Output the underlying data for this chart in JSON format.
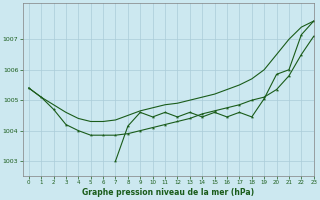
{
  "title": "Graphe pression niveau de la mer (hPa)",
  "background_color": "#cce8f0",
  "grid_color": "#aaccd8",
  "line_color": "#1a5c1a",
  "xlim": [
    -0.5,
    23
  ],
  "ylim": [
    1002.5,
    1008.2
  ],
  "yticks": [
    1003,
    1004,
    1005,
    1006,
    1007
  ],
  "xticks": [
    0,
    1,
    2,
    3,
    4,
    5,
    6,
    7,
    8,
    9,
    10,
    11,
    12,
    13,
    14,
    15,
    16,
    17,
    18,
    19,
    20,
    21,
    22,
    23
  ],
  "smooth_upper_x": [
    0,
    1,
    2,
    3,
    4,
    5,
    6,
    7,
    8,
    9,
    10,
    11,
    12,
    13,
    14,
    15,
    16,
    17,
    18,
    19,
    20,
    21,
    22,
    23
  ],
  "smooth_upper_y": [
    1005.4,
    1005.1,
    1004.85,
    1004.6,
    1004.4,
    1004.3,
    1004.3,
    1004.35,
    1004.5,
    1004.65,
    1004.75,
    1004.85,
    1004.9,
    1005.0,
    1005.1,
    1005.2,
    1005.35,
    1005.5,
    1005.7,
    1006.0,
    1006.5,
    1007.0,
    1007.4,
    1007.6
  ],
  "smooth_lower_x": [
    0,
    1,
    2,
    3,
    4,
    5,
    6,
    7,
    8,
    9,
    10,
    11,
    12,
    13,
    14,
    15,
    16,
    17,
    18,
    19,
    20,
    21,
    22,
    23
  ],
  "smooth_lower_y": [
    1005.4,
    1005.1,
    1004.7,
    1004.2,
    1004.0,
    1003.85,
    1003.85,
    1003.85,
    1003.9,
    1004.0,
    1004.1,
    1004.2,
    1004.3,
    1004.4,
    1004.55,
    1004.65,
    1004.75,
    1004.85,
    1005.0,
    1005.1,
    1005.35,
    1005.8,
    1006.5,
    1007.1
  ],
  "jagged_x": [
    7,
    8,
    9,
    10,
    11,
    12,
    13,
    14,
    15,
    16,
    17,
    18,
    19,
    20,
    21,
    22,
    23
  ],
  "jagged_y": [
    1003.0,
    1004.15,
    1004.6,
    1004.45,
    1004.6,
    1004.45,
    1004.6,
    1004.45,
    1004.6,
    1004.45,
    1004.6,
    1004.45,
    1005.05,
    1005.85,
    1006.0,
    1007.15,
    1007.6
  ]
}
